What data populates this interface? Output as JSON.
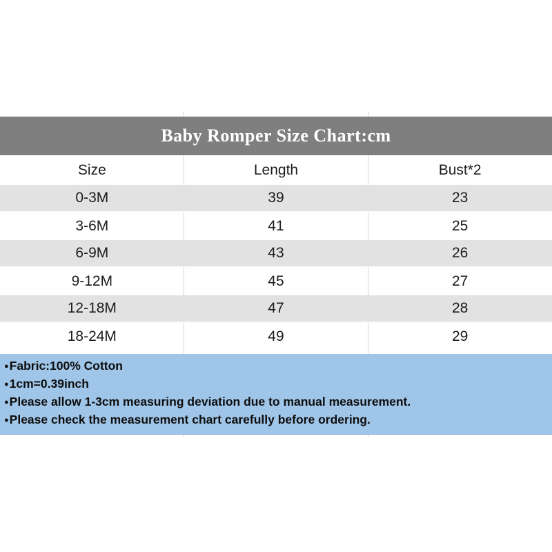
{
  "title": "Baby Romper Size Chart:cm",
  "table": {
    "columns": [
      "Size",
      "Length",
      "Bust*2"
    ],
    "rows": [
      [
        "0-3M",
        "39",
        "23"
      ],
      [
        "3-6M",
        "41",
        "25"
      ],
      [
        "6-9M",
        "43",
        "26"
      ],
      [
        "9-12M",
        "45",
        "27"
      ],
      [
        "12-18M",
        "47",
        "28"
      ],
      [
        "18-24M",
        "49",
        "29"
      ]
    ]
  },
  "notes": {
    "bullet": "●",
    "items": [
      "Fabric:100% Cotton",
      "1cm=0.39inch",
      "Please allow 1-3cm measuring deviation due to manual measurement.",
      "Please check the measurement chart carefully before ordering."
    ]
  },
  "colors": {
    "title_bar_bg": "#7f7f7f",
    "title_text": "#ffffff",
    "alt_row_bg": "#e2e2e2",
    "notes_bg": "#9fc5e8",
    "divider": "#d5d5d5",
    "body_text": "#1c1c1c"
  },
  "chart_data": {
    "type": "table",
    "title": "Baby Romper Size Chart:cm",
    "columns": [
      "Size",
      "Length",
      "Bust*2"
    ],
    "rows": [
      [
        "0-3M",
        39,
        23
      ],
      [
        "3-6M",
        41,
        25
      ],
      [
        "6-9M",
        43,
        26
      ],
      [
        "9-12M",
        45,
        27
      ],
      [
        "12-18M",
        47,
        28
      ],
      [
        "18-24M",
        49,
        29
      ]
    ]
  }
}
